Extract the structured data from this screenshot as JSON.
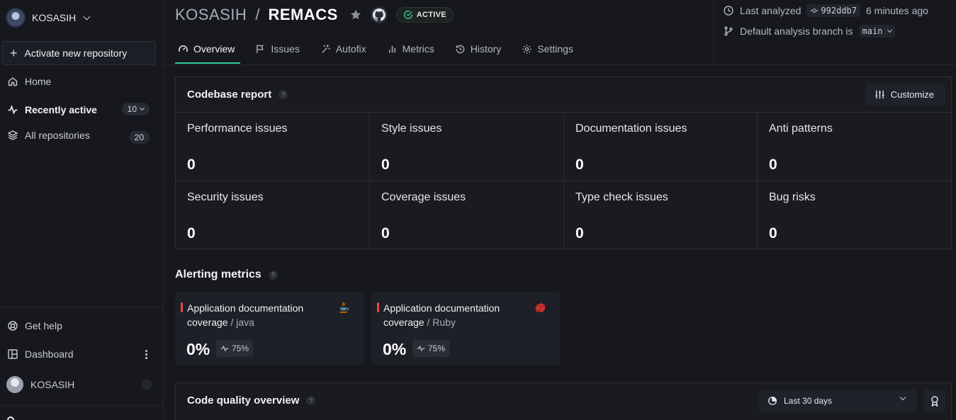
{
  "sidebar": {
    "org_name": "KOSASIH",
    "activate_label": "Activate new repository",
    "nav": [
      {
        "label": "Home"
      },
      {
        "label": "Recently active",
        "count": "10"
      },
      {
        "label": "All repositories",
        "count": "20"
      }
    ],
    "bottom": {
      "help_label": "Get help",
      "dashboard_label": "Dashboard",
      "user_name": "KOSASIH"
    }
  },
  "header": {
    "owner": "KOSASIH",
    "separator": "/",
    "repo": "REMACS",
    "status_badge": "ACTIVE",
    "tabs": [
      {
        "label": "Overview",
        "active": true
      },
      {
        "label": "Issues"
      },
      {
        "label": "Autofix"
      },
      {
        "label": "Metrics"
      },
      {
        "label": "History"
      },
      {
        "label": "Settings"
      }
    ],
    "analysis": {
      "last_analyzed_label": "Last analyzed",
      "commit": "992ddb7",
      "time_ago": "6 minutes ago",
      "branch_label": "Default analysis branch is",
      "branch": "main"
    }
  },
  "codebase_report": {
    "title": "Codebase report",
    "help": "?",
    "customize_label": "Customize",
    "cells": [
      {
        "label": "Performance issues",
        "value": "0"
      },
      {
        "label": "Style issues",
        "value": "0"
      },
      {
        "label": "Documentation issues",
        "value": "0"
      },
      {
        "label": "Anti patterns",
        "value": "0"
      },
      {
        "label": "Security issues",
        "value": "0"
      },
      {
        "label": "Coverage issues",
        "value": "0"
      },
      {
        "label": "Type check issues",
        "value": "0"
      },
      {
        "label": "Bug risks",
        "value": "0"
      }
    ]
  },
  "alerting": {
    "title": "Alerting metrics",
    "help": "?",
    "metrics": [
      {
        "title": "Application documentation coverage",
        "lang": "/ java",
        "value": "0%",
        "threshold": "75%",
        "icon": "java-icon"
      },
      {
        "title": "Application documentation coverage",
        "lang": "/ Ruby",
        "value": "0%",
        "threshold": "75%",
        "icon": "ruby-icon"
      }
    ]
  },
  "code_quality": {
    "title": "Code quality overview",
    "help": "?",
    "range": "Last 30 days"
  },
  "colors": {
    "accent": "#33cb9a",
    "alert": "#e5484d",
    "background": "#16181d"
  }
}
